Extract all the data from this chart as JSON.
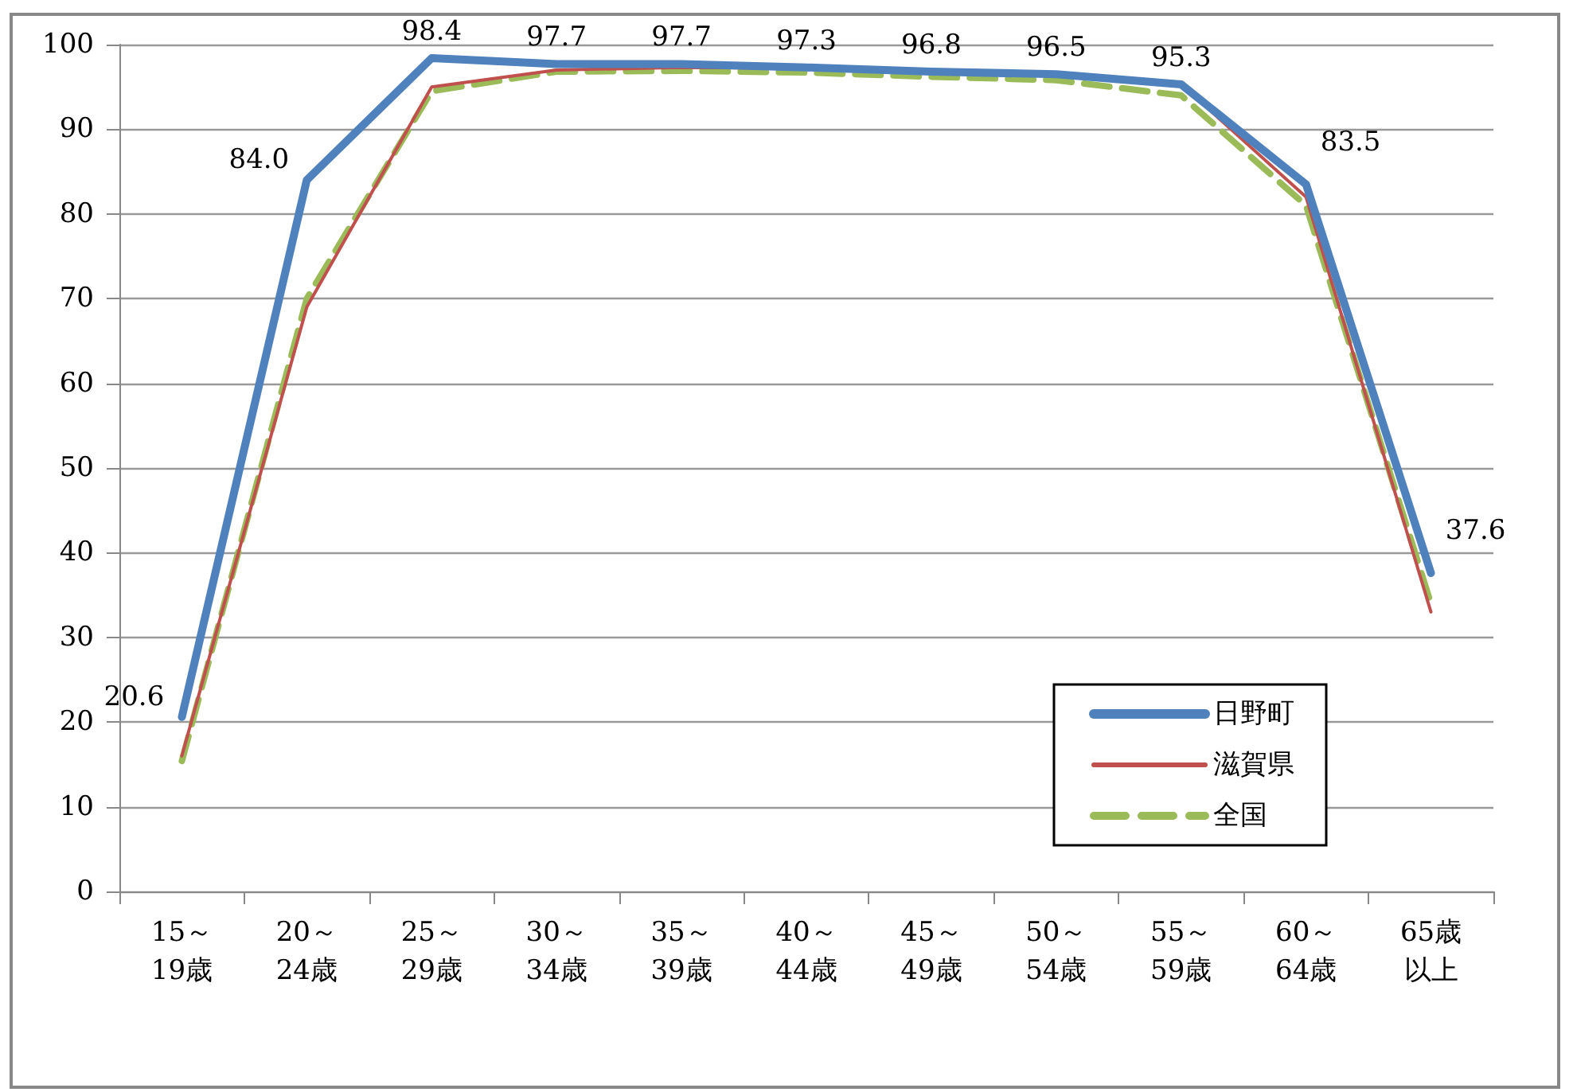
{
  "chart_data": {
    "type": "line",
    "categories": [
      "15～19歳",
      "20～24歳",
      "25～29歳",
      "30～34歳",
      "35～39歳",
      "40～44歳",
      "45～49歳",
      "50～54歳",
      "55～59歳",
      "60～64歳",
      "65歳以上"
    ],
    "series": [
      {
        "name": "日野町",
        "color": "#4f81bd",
        "values": [
          20.6,
          84.0,
          98.4,
          97.7,
          97.7,
          97.3,
          96.8,
          96.5,
          95.3,
          83.5,
          37.6
        ],
        "value_labels": [
          "20.6",
          "84.0",
          "98.4",
          "97.7",
          "97.7",
          "97.3",
          "96.8",
          "96.5",
          "95.3",
          "83.5",
          "37.6"
        ],
        "line_style": "solid"
      },
      {
        "name": "滋賀県",
        "color": "#c0504d",
        "values": [
          16,
          69,
          95,
          97,
          97.3,
          97.2,
          96.8,
          96.5,
          95.3,
          82,
          33
        ],
        "line_style": "solid"
      },
      {
        "name": "全国",
        "color": "#9bbb59",
        "values": [
          15.4,
          70,
          94.5,
          96.8,
          96.9,
          96.7,
          96.2,
          95.8,
          94,
          81,
          34
        ],
        "line_style": "dashed"
      }
    ],
    "ylim": [
      0,
      100
    ],
    "yticks": [
      0,
      10,
      20,
      30,
      40,
      50,
      60,
      70,
      80,
      90,
      100
    ],
    "grid": "y",
    "legend": "bottom right",
    "marker": "none"
  }
}
